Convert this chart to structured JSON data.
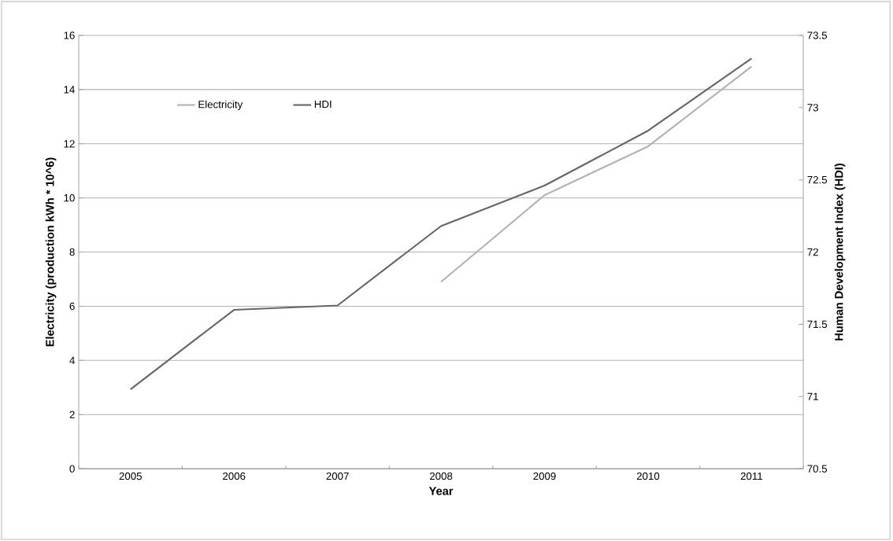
{
  "chart_data": {
    "type": "line",
    "xlabel": "Year",
    "ylabel": "Electricity (production kWh * 10^6)",
    "y2label": "Human Development Index (HDI)",
    "categories": [
      "2005",
      "2006",
      "2007",
      "2008",
      "2009",
      "2010",
      "2011"
    ],
    "series": [
      {
        "name": "Electricity",
        "color": "#b3b3b3",
        "values": [
          null,
          null,
          null,
          6.9,
          10.1,
          11.9,
          14.85
        ]
      },
      {
        "name": "HDI",
        "color": "#666666",
        "axis": "y2",
        "values": [
          71.05,
          71.6,
          71.63,
          72.18,
          72.46,
          72.84,
          73.34
        ]
      }
    ],
    "ylim": [
      0,
      16
    ],
    "yticks": [
      0,
      2,
      4,
      6,
      8,
      10,
      12,
      14,
      16
    ],
    "y2lim": [
      70.5,
      73.5
    ],
    "y2ticks": [
      70.5,
      71,
      71.5,
      72,
      72.5,
      73,
      73.5
    ],
    "grid": "y",
    "legend": "top left",
    "marker": "none",
    "line_style": "solid"
  }
}
